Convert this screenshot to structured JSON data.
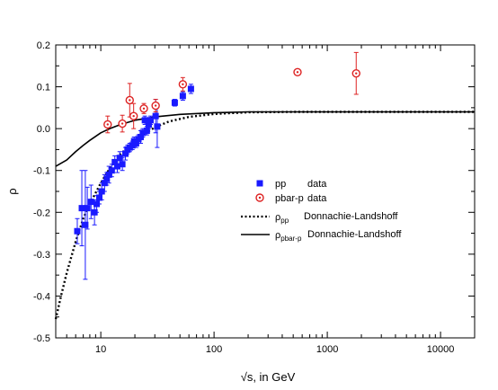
{
  "chart_data": {
    "type": "scatter",
    "title": "",
    "xlabel": "√s, in GeV",
    "ylabel": "ρ",
    "xscale": "log",
    "xlim": [
      4,
      20000
    ],
    "ylim": [
      -0.5,
      0.2
    ],
    "grid": false,
    "legend_position": "center-right",
    "xticks": [
      {
        "value": 10,
        "label": "10"
      },
      {
        "value": 100,
        "label": "100"
      },
      {
        "value": 1000,
        "label": "1000"
      },
      {
        "value": 10000,
        "label": "10000"
      }
    ],
    "yticks": [
      {
        "value": -0.5,
        "label": "-0.5"
      },
      {
        "value": -0.4,
        "label": "-0.4"
      },
      {
        "value": -0.3,
        "label": "-0.3"
      },
      {
        "value": -0.2,
        "label": "-0.2"
      },
      {
        "value": -0.1,
        "label": "-0.1"
      },
      {
        "value": 0.0,
        "label": "0.0"
      },
      {
        "value": 0.1,
        "label": "0.1"
      },
      {
        "value": 0.2,
        "label": "0.2"
      }
    ],
    "series": [
      {
        "name": "pp",
        "name_suffix": "data",
        "kind": "points",
        "marker": "square",
        "color": "#1a1aff",
        "points": [
          {
            "x": 6.2,
            "y": -0.245,
            "err": 0.03
          },
          {
            "x": 6.8,
            "y": -0.19,
            "err": 0.09
          },
          {
            "x": 7.3,
            "y": -0.23,
            "err": 0.13
          },
          {
            "x": 7.6,
            "y": -0.19,
            "err": 0.05
          },
          {
            "x": 8.2,
            "y": -0.175,
            "err": 0.04
          },
          {
            "x": 8.8,
            "y": -0.2,
            "err": 0.03
          },
          {
            "x": 9.2,
            "y": -0.18,
            "err": 0.02
          },
          {
            "x": 9.7,
            "y": -0.165,
            "err": 0.015
          },
          {
            "x": 10.2,
            "y": -0.15,
            "err": 0.02
          },
          {
            "x": 10.8,
            "y": -0.13,
            "err": 0.02
          },
          {
            "x": 11.3,
            "y": -0.12,
            "err": 0.015
          },
          {
            "x": 11.8,
            "y": -0.11,
            "err": 0.02
          },
          {
            "x": 12.5,
            "y": -0.1,
            "err": 0.015
          },
          {
            "x": 13.3,
            "y": -0.08,
            "err": 0.015
          },
          {
            "x": 14.0,
            "y": -0.09,
            "err": 0.015
          },
          {
            "x": 14.7,
            "y": -0.07,
            "err": 0.015
          },
          {
            "x": 15.5,
            "y": -0.085,
            "err": 0.015
          },
          {
            "x": 16.5,
            "y": -0.06,
            "err": 0.015
          },
          {
            "x": 17.2,
            "y": -0.05,
            "err": 0.01
          },
          {
            "x": 18.0,
            "y": -0.045,
            "err": 0.01
          },
          {
            "x": 19.0,
            "y": -0.04,
            "err": 0.01
          },
          {
            "x": 19.7,
            "y": -0.03,
            "err": 0.01
          },
          {
            "x": 20.5,
            "y": -0.035,
            "err": 0.01
          },
          {
            "x": 21.5,
            "y": -0.025,
            "err": 0.01
          },
          {
            "x": 22.5,
            "y": -0.02,
            "err": 0.015
          },
          {
            "x": 23.5,
            "y": -0.01,
            "err": 0.01
          },
          {
            "x": 24.5,
            "y": 0.02,
            "err": 0.01
          },
          {
            "x": 25.5,
            "y": -0.005,
            "err": 0.01
          },
          {
            "x": 26.5,
            "y": 0.01,
            "err": 0.01
          },
          {
            "x": 27.5,
            "y": 0.02,
            "err": 0.01
          },
          {
            "x": 30.5,
            "y": 0.03,
            "err": 0.04
          },
          {
            "x": 31.5,
            "y": 0.005,
            "err": 0.05
          },
          {
            "x": 45.0,
            "y": 0.062,
            "err": 0.008
          },
          {
            "x": 53.0,
            "y": 0.078,
            "err": 0.01
          },
          {
            "x": 62.5,
            "y": 0.095,
            "err": 0.011
          }
        ]
      },
      {
        "name": "pbar-p",
        "name_suffix": "data",
        "kind": "points",
        "marker": "circle",
        "color": "#dd2222",
        "points": [
          {
            "x": 11.5,
            "y": 0.01,
            "err": 0.02
          },
          {
            "x": 15.5,
            "y": 0.012,
            "err": 0.02
          },
          {
            "x": 18.0,
            "y": 0.068,
            "err": 0.04
          },
          {
            "x": 19.5,
            "y": 0.03,
            "err": 0.03
          },
          {
            "x": 24.0,
            "y": 0.048,
            "err": 0.012
          },
          {
            "x": 30.5,
            "y": 0.055,
            "err": 0.015
          },
          {
            "x": 53.0,
            "y": 0.106,
            "err": 0.016
          },
          {
            "x": 546.0,
            "y": 0.135,
            "err": 0.005
          },
          {
            "x": 1800.0,
            "y": 0.132,
            "err": 0.05
          }
        ]
      },
      {
        "name": "ρpp",
        "label_main": "ρ",
        "label_sub": "pp",
        "label_suffix": "Donnachie-Landshoff",
        "kind": "line",
        "style": "dotted",
        "color": "#000000",
        "points": [
          {
            "x": 4.0,
            "y": -0.455
          },
          {
            "x": 4.5,
            "y": -0.395
          },
          {
            "x": 5.0,
            "y": -0.345
          },
          {
            "x": 6.0,
            "y": -0.27
          },
          {
            "x": 7.0,
            "y": -0.215
          },
          {
            "x": 8.0,
            "y": -0.18
          },
          {
            "x": 10.0,
            "y": -0.13
          },
          {
            "x": 12.0,
            "y": -0.095
          },
          {
            "x": 15.0,
            "y": -0.06
          },
          {
            "x": 20.0,
            "y": -0.03
          },
          {
            "x": 25.0,
            "y": -0.01
          },
          {
            "x": 30.0,
            "y": 0.003
          },
          {
            "x": 40.0,
            "y": 0.017
          },
          {
            "x": 60.0,
            "y": 0.028
          },
          {
            "x": 100.0,
            "y": 0.035
          },
          {
            "x": 200.0,
            "y": 0.039
          },
          {
            "x": 500.0,
            "y": 0.04
          },
          {
            "x": 2000.0,
            "y": 0.04
          },
          {
            "x": 20000.0,
            "y": 0.04
          }
        ]
      },
      {
        "name": "ρpbar-p",
        "label_main": "ρ",
        "label_sub": "pbar-p",
        "label_suffix": "Donnachie-Landshoff",
        "kind": "line",
        "style": "solid",
        "color": "#000000",
        "points": [
          {
            "x": 4.0,
            "y": -0.09
          },
          {
            "x": 5.0,
            "y": -0.075
          },
          {
            "x": 6.0,
            "y": -0.055
          },
          {
            "x": 7.0,
            "y": -0.04
          },
          {
            "x": 8.0,
            "y": -0.028
          },
          {
            "x": 10.0,
            "y": -0.01
          },
          {
            "x": 12.0,
            "y": 0.0
          },
          {
            "x": 15.0,
            "y": 0.01
          },
          {
            "x": 20.0,
            "y": 0.02
          },
          {
            "x": 30.0,
            "y": 0.028
          },
          {
            "x": 50.0,
            "y": 0.034
          },
          {
            "x": 100.0,
            "y": 0.038
          },
          {
            "x": 200.0,
            "y": 0.04
          },
          {
            "x": 500.0,
            "y": 0.04
          },
          {
            "x": 2000.0,
            "y": 0.04
          },
          {
            "x": 20000.0,
            "y": 0.04
          }
        ]
      }
    ]
  }
}
